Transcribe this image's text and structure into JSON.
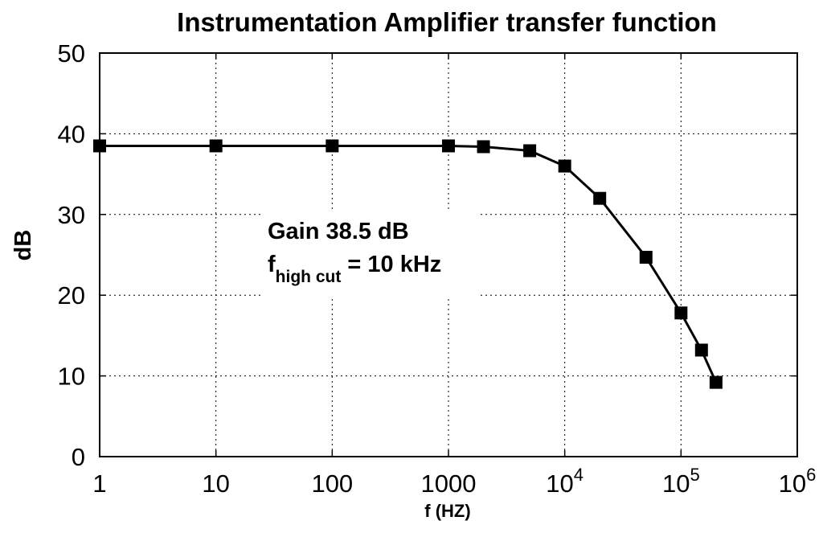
{
  "chart_data": {
    "type": "line",
    "title": "Instrumentation Amplifier transfer function",
    "xlabel": "f (HZ)",
    "ylabel": "dB",
    "x_scale": "log",
    "xlim": [
      1,
      1000000
    ],
    "ylim": [
      0,
      50
    ],
    "grid": true,
    "x_ticks": [
      {
        "value": 1,
        "label": "1"
      },
      {
        "value": 10,
        "label": "10"
      },
      {
        "value": 100,
        "label": "100"
      },
      {
        "value": 1000,
        "label": "1000"
      },
      {
        "value": 10000,
        "label": "10",
        "exp": "4"
      },
      {
        "value": 100000,
        "label": "10",
        "exp": "5"
      },
      {
        "value": 1000000,
        "label": "10",
        "exp": "6"
      }
    ],
    "y_ticks": [
      {
        "value": 0,
        "label": "0"
      },
      {
        "value": 10,
        "label": "10"
      },
      {
        "value": 20,
        "label": "20"
      },
      {
        "value": 30,
        "label": "30"
      },
      {
        "value": 40,
        "label": "40"
      },
      {
        "value": 50,
        "label": "50"
      }
    ],
    "series": [
      {
        "color": "#000000",
        "marker": "square",
        "points": [
          {
            "x": 1,
            "y": 38.5
          },
          {
            "x": 10,
            "y": 38.5
          },
          {
            "x": 100,
            "y": 38.5
          },
          {
            "x": 1000,
            "y": 38.5
          },
          {
            "x": 2000,
            "y": 38.4
          },
          {
            "x": 5000,
            "y": 37.9
          },
          {
            "x": 10000,
            "y": 36
          },
          {
            "x": 20000,
            "y": 32
          },
          {
            "x": 50000,
            "y": 24.7
          },
          {
            "x": 100000,
            "y": 17.8
          },
          {
            "x": 150000,
            "y": 13.2
          },
          {
            "x": 200000,
            "y": 9.2
          }
        ]
      }
    ],
    "annotations": {
      "line1": "Gain 38.5 dB",
      "line2_main": "f",
      "line2_sub": "high cut",
      "line2_rest": " = 10 kHz"
    }
  }
}
